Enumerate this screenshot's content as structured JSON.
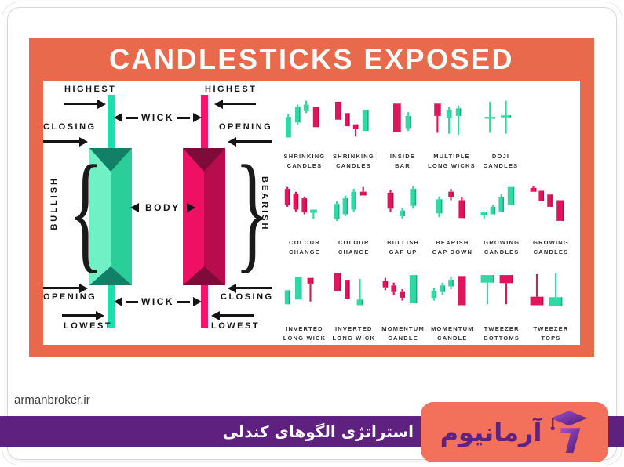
{
  "title": "CANDLESTICKS EXPOSED",
  "watermark": "armanbroker.ir",
  "footer": {
    "caption": "استراتژی الگوهای کندلی",
    "brand": "آرمانیوم"
  },
  "colors": {
    "banner": "#E8694B",
    "purple": "#5E2180",
    "coral_badge": "#F3705A",
    "bullish_light": "#70F0C5",
    "bullish_mid": "#2BCD98",
    "bullish_dark": "#128066",
    "bullish_wick": "#14E3B0",
    "bearish_light": "#EE1063",
    "bearish_mid": "#B80D4D",
    "bearish_dark": "#7E0B39",
    "bearish_wick": "#F8146C",
    "mini_green": "#2FD9A4",
    "mini_green_dark": "#1FAE83",
    "mini_red": "#E2155C",
    "mini_red_dark": "#B80F4C"
  },
  "anatomy": {
    "highest": "HIGHEST",
    "closing": "CLOSING",
    "opening": "OPENING",
    "lowest": "LOWEST",
    "wick": "WICK",
    "body": "BODY",
    "bullish": "BULLISH",
    "bearish": "BEARISH"
  },
  "pattern_rows": [
    [
      {
        "id": "shrinking-candles-1",
        "label": [
          "SHRINKING",
          "CANDLES"
        ],
        "candles": [
          [
            10,
            36,
            80,
            "g",
            30,
            null
          ],
          [
            30,
            16,
            48,
            "g",
            10,
            52
          ],
          [
            48,
            10,
            24,
            "g",
            2,
            28
          ],
          [
            68,
            15,
            58,
            "r",
            null,
            null,
            13
          ]
        ]
      },
      {
        "id": "shrinking-candles-2",
        "label": [
          "SHRINKING",
          "CANDLES"
        ],
        "candles": [
          [
            10,
            4,
            42,
            "r",
            null,
            null,
            13
          ],
          [
            30,
            28,
            56,
            "r",
            null,
            null
          ],
          [
            48,
            52,
            62,
            "r",
            null,
            78
          ],
          [
            68,
            22,
            66,
            "g",
            null,
            null,
            13
          ]
        ]
      },
      {
        "id": "inside-bar",
        "label": [
          "INSIDE",
          "BAR"
        ],
        "candles": [
          [
            30,
            8,
            68,
            "r",
            null,
            null,
            16
          ],
          [
            56,
            34,
            60,
            "g",
            26,
            66,
            12
          ]
        ]
      },
      {
        "id": "multiple-long-wicks",
        "label": [
          "MULTIPLE",
          "LONG WICKS"
        ],
        "candles": [
          [
            12,
            8,
            34,
            "r",
            null,
            70,
            14
          ],
          [
            38,
            22,
            38,
            "g",
            16,
            72
          ],
          [
            58,
            18,
            34,
            "g",
            12,
            74
          ]
        ]
      },
      {
        "id": "doji-candles",
        "label": [
          "DOJI",
          "CANDLES"
        ],
        "candles": [
          [
            16,
            36,
            40,
            "g",
            4,
            70,
            22
          ],
          [
            50,
            33,
            37,
            "g",
            2,
            72,
            22
          ]
        ]
      }
    ],
    [
      {
        "id": "colour-change-1",
        "label": [
          "COLOUR",
          "CHANGE"
        ],
        "candles": [
          [
            8,
            6,
            40,
            "r",
            2,
            44
          ],
          [
            26,
            16,
            50,
            "r",
            12,
            54
          ],
          [
            44,
            26,
            56,
            "r",
            22,
            60
          ],
          [
            62,
            50,
            57,
            "g",
            null,
            70,
            14
          ]
        ]
      },
      {
        "id": "colour-change-2",
        "label": [
          "COLOUR",
          "CHANGE"
        ],
        "candles": [
          [
            8,
            38,
            70,
            "g",
            32,
            74
          ],
          [
            26,
            26,
            60,
            "g",
            20,
            64
          ],
          [
            44,
            12,
            50,
            "g",
            6,
            54
          ],
          [
            63,
            12,
            20,
            "r",
            2,
            null,
            13
          ]
        ]
      },
      {
        "id": "bullish-gap-up",
        "label": [
          "BULLISH",
          "GAP UP"
        ],
        "candles": [
          [
            16,
            14,
            48,
            "r",
            8,
            56,
            13
          ],
          [
            42,
            52,
            64,
            "g",
            46,
            70
          ],
          [
            64,
            6,
            42,
            "g",
            0,
            48,
            13
          ]
        ]
      },
      {
        "id": "bearish-gap-down",
        "label": [
          "BEARISH",
          "GAP DOWN"
        ],
        "candles": [
          [
            16,
            28,
            58,
            "g",
            22,
            66,
            13
          ],
          [
            42,
            12,
            24,
            "r",
            6,
            30
          ],
          [
            64,
            30,
            68,
            "r",
            24,
            null,
            13
          ]
        ]
      },
      {
        "id": "growing-candles-1",
        "label": [
          "GROWING",
          "CANDLES"
        ],
        "candles": [
          [
            6,
            56,
            62,
            "g",
            null,
            70,
            14
          ],
          [
            26,
            44,
            60,
            "g",
            40,
            null
          ],
          [
            44,
            24,
            54,
            "g",
            18,
            null
          ],
          [
            63,
            2,
            40,
            "g",
            null,
            null,
            14
          ]
        ]
      },
      {
        "id": "growing-candles-2",
        "label": [
          "GROWING",
          "CANDLES"
        ],
        "candles": [
          [
            6,
            4,
            12,
            "r",
            0,
            null,
            13
          ],
          [
            24,
            10,
            32,
            "r",
            null,
            null
          ],
          [
            42,
            18,
            44,
            "r",
            null,
            null
          ],
          [
            62,
            30,
            74,
            "r",
            null,
            null,
            15
          ]
        ]
      }
    ],
    [
      {
        "id": "inverted-long-wick-1",
        "label": [
          "INVERTED",
          "LONG WICK"
        ],
        "candles": [
          [
            8,
            38,
            68,
            "g",
            null,
            null
          ],
          [
            30,
            10,
            58,
            "g",
            null,
            null,
            14
          ],
          [
            56,
            12,
            24,
            "r",
            null,
            62,
            13
          ]
        ]
      },
      {
        "id": "inverted-long-wick-2",
        "label": [
          "INVERTED",
          "LONG WICK"
        ],
        "candles": [
          [
            8,
            2,
            40,
            "r",
            null,
            null,
            14
          ],
          [
            30,
            16,
            56,
            "r",
            null,
            null
          ],
          [
            56,
            58,
            70,
            "g",
            14,
            null,
            13
          ]
        ]
      },
      {
        "id": "momentum-candle-1",
        "label": [
          "MOMENTUM",
          "CANDLE"
        ],
        "candles": [
          [
            6,
            18,
            32,
            "r",
            12,
            38
          ],
          [
            24,
            28,
            42,
            "r",
            22,
            48
          ],
          [
            42,
            42,
            54,
            "r",
            36,
            60
          ],
          [
            63,
            6,
            66,
            "g",
            null,
            null,
            16
          ]
        ]
      },
      {
        "id": "momentum-candle-2",
        "label": [
          "MOMENTUM",
          "CANDLE"
        ],
        "candles": [
          [
            6,
            40,
            54,
            "g",
            34,
            60
          ],
          [
            24,
            28,
            42,
            "g",
            22,
            48
          ],
          [
            42,
            16,
            30,
            "g",
            10,
            36
          ],
          [
            63,
            8,
            70,
            "r",
            null,
            null,
            16
          ]
        ]
      },
      {
        "id": "tweezer-bottoms",
        "label": [
          "TWEEZER",
          "BOTTOMS"
        ],
        "candles": [
          [
            6,
            6,
            22,
            "g",
            null,
            68,
            28
          ],
          [
            46,
            6,
            23,
            "r",
            null,
            68,
            28
          ]
        ]
      },
      {
        "id": "tweezer-tops",
        "label": [
          "TWEEZER",
          "TOPS"
        ],
        "candles": [
          [
            6,
            52,
            70,
            "r",
            4,
            null,
            28
          ],
          [
            46,
            53,
            72,
            "g",
            2,
            null,
            28
          ]
        ]
      }
    ]
  ]
}
